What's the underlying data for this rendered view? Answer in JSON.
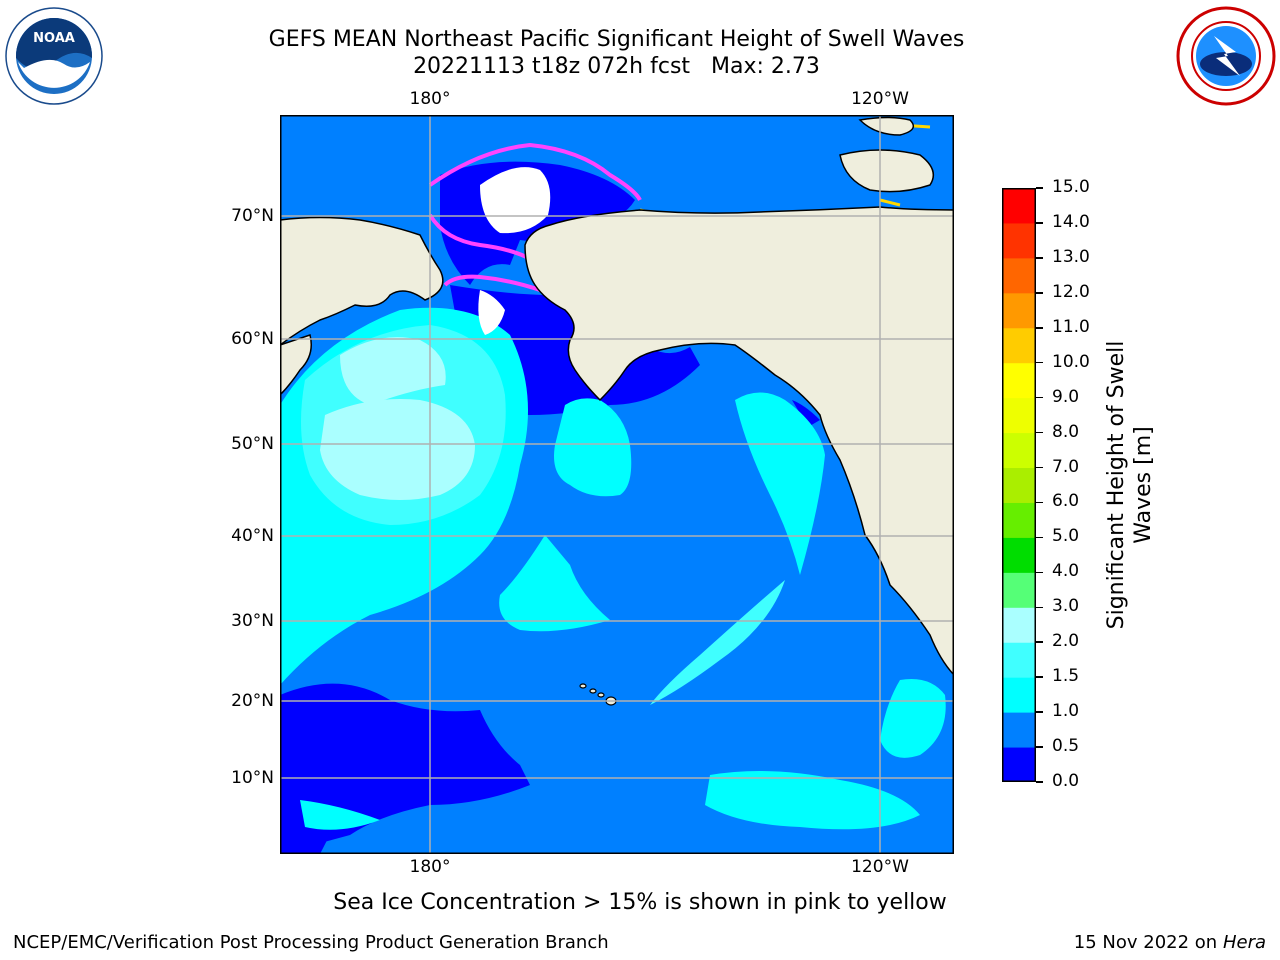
{
  "header": {
    "title": "GEFS MEAN Northeast Pacific Significant Height of Swell Waves",
    "subtitle": "20221113 t18z 072h fcst",
    "max_label": "Max: 2.73"
  },
  "map": {
    "lon_labels_top": [
      "180°",
      "120°W"
    ],
    "lon_labels_bottom": [
      "180°",
      "120°W"
    ],
    "lat_labels": [
      "70°N",
      "60°N",
      "50°N",
      "40°N",
      "30°N",
      "20°N",
      "10°N"
    ],
    "colors": {
      "land": "#efeedd",
      "ocean_base": "#0080ff",
      "grid": "#b0b0b0",
      "ice_edge": "#ff44ff",
      "ice_yellow": "#ffd700"
    }
  },
  "colorbar": {
    "title": "Significant Height of Swell Waves [m]",
    "title_line1": "Significant Height of Swell",
    "title_line2": "Waves [m]",
    "ticks": [
      "0.0",
      "0.5",
      "1.0",
      "1.5",
      "2.0",
      "3.0",
      "4.0",
      "5.0",
      "6.0",
      "7.0",
      "8.0",
      "9.0",
      "10.0",
      "11.0",
      "12.0",
      "13.0",
      "14.0",
      "15.0"
    ],
    "colors": [
      "#0000ff",
      "#0080ff",
      "#00ffff",
      "#40ffff",
      "#aaffff",
      "#55ff77",
      "#00dd00",
      "#66ee00",
      "#aaee00",
      "#ccff00",
      "#eeff00",
      "#ffff00",
      "#ffcc00",
      "#ff9900",
      "#ff6600",
      "#ff3300",
      "#ff0000"
    ]
  },
  "caption": "Sea Ice Concentration > 15% is shown in pink to yellow",
  "footer": {
    "left": "NCEP/EMC/Verification Post Processing Product Generation Branch",
    "date": "15 Nov 2022 on",
    "host": "Hera"
  },
  "logos": {
    "noaa": "noaa-logo",
    "nws": "nws-logo"
  }
}
